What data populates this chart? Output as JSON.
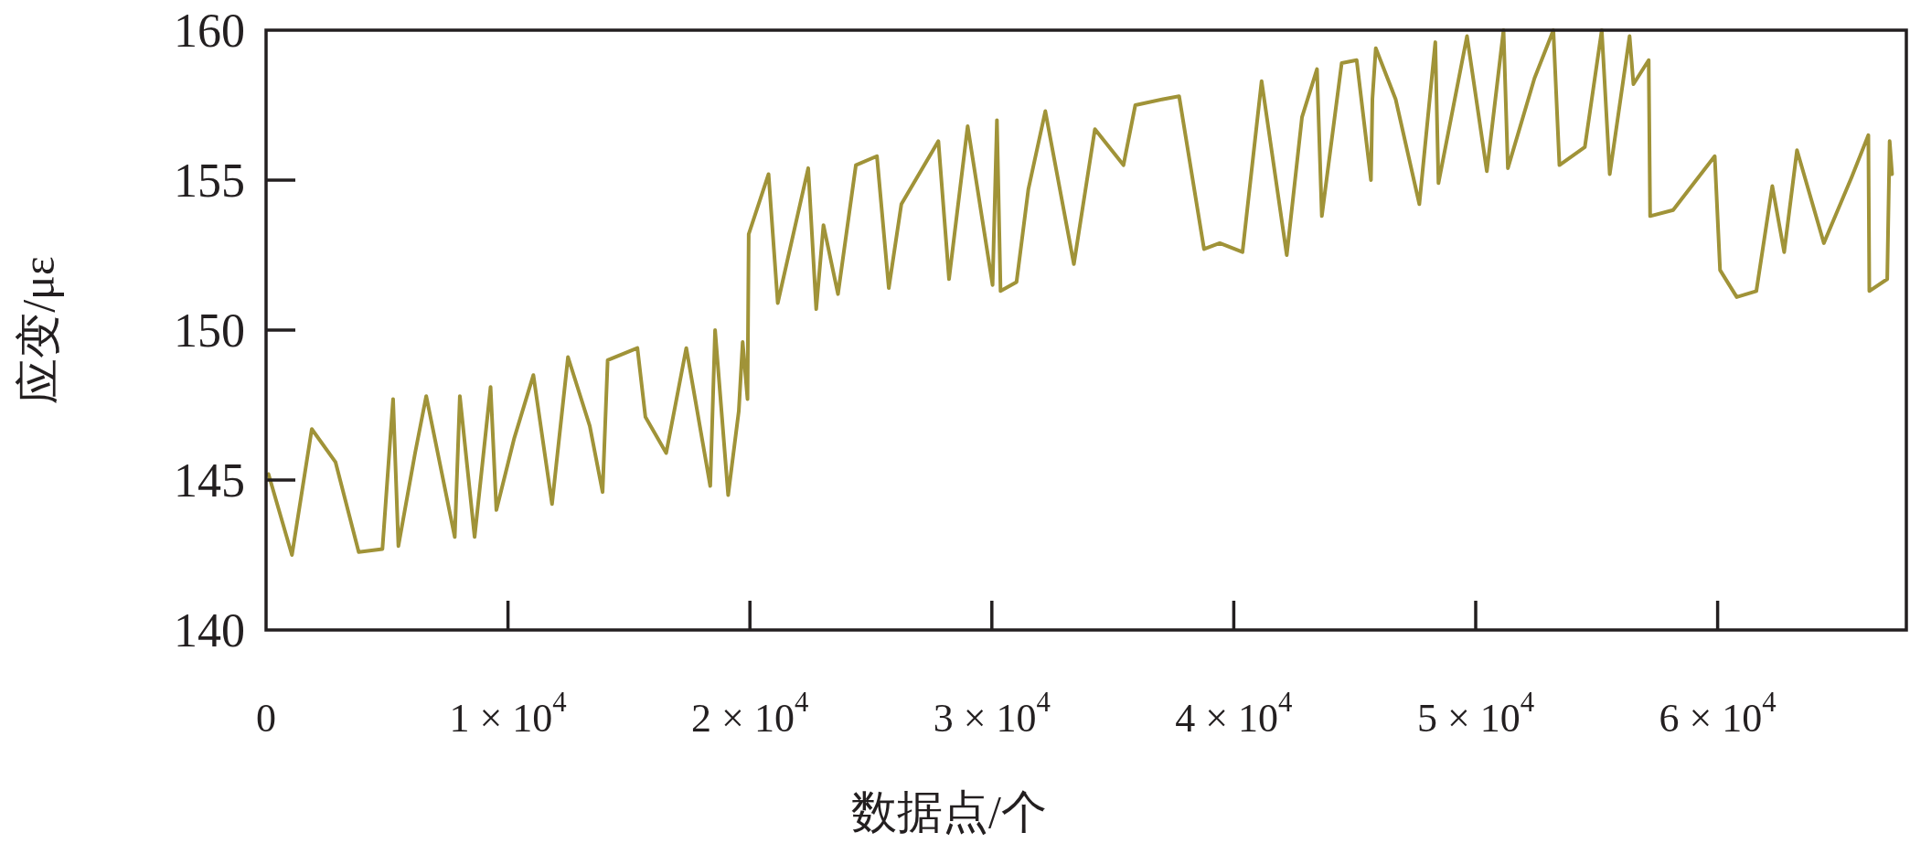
{
  "chart_data": {
    "type": "line",
    "xlabel": "数据点/个",
    "ylabel": "应变/με",
    "xlim": [
      0,
      67800
    ],
    "ylim": [
      140,
      160
    ],
    "xticks": [
      0,
      {
        "value": 10000,
        "label": "1 × 10$^{4}$"
      },
      {
        "value": 20000,
        "label": "2 × 10$^{4}$"
      },
      {
        "value": 30000,
        "label": "3 × 10$^{4}$"
      },
      {
        "value": 40000,
        "label": "4 × 10$^{4}$"
      },
      {
        "value": 50000,
        "label": "5 × 10$^{4}$"
      },
      {
        "value": 60000,
        "label": "6 × 10$^{4}$"
      }
    ],
    "yticks": [
      140,
      145,
      150,
      155,
      160
    ],
    "marker": "none",
    "line_style": "solid",
    "series": [
      {
        "color": "#a09338",
        "x": [
          100,
          1070,
          1890,
          2870,
          3830,
          4810,
          5250,
          5470,
          6160,
          6620,
          7800,
          8010,
          8620,
          9280,
          9520,
          10260,
          11050,
          11820,
          12480,
          13380,
          13910,
          14120,
          15350,
          15680,
          16540,
          17370,
          18360,
          18560,
          19100,
          19540,
          19700,
          19900,
          19950,
          20770,
          21150,
          22410,
          22740,
          23040,
          23640,
          24380,
          25250,
          25740,
          26260,
          27790,
          28230,
          29000,
          30030,
          30210,
          30360,
          31020,
          31510,
          32210,
          33390,
          34260,
          35440,
          35930,
          37080,
          37740,
          38770,
          39420,
          40360,
          41150,
          42190,
          42820,
          43440,
          43640,
          44460,
          45080,
          45670,
          45730,
          45870,
          46690,
          47670,
          48330,
          48460,
          49640,
          50460,
          51150,
          51330,
          52430,
          53210,
          53460,
          54510,
          55210,
          55540,
          56360,
          56520,
          57150,
          57210,
          58160,
          59880,
          60100,
          60790,
          61600,
          62260,
          62750,
          63280,
          64390,
          65540,
          66230,
          66270,
          67010,
          67110,
          67210
        ],
        "values": [
          145.2,
          142.5,
          146.7,
          145.6,
          142.6,
          142.7,
          147.7,
          142.8,
          145.9,
          147.8,
          143.1,
          147.8,
          143.1,
          148.1,
          144.0,
          146.4,
          148.5,
          144.2,
          149.1,
          146.8,
          144.6,
          149.0,
          149.4,
          147.1,
          145.9,
          149.4,
          144.8,
          150.0,
          144.5,
          147.3,
          149.6,
          147.7,
          153.2,
          155.2,
          150.9,
          155.4,
          150.7,
          153.5,
          151.2,
          155.5,
          155.8,
          151.4,
          154.2,
          156.3,
          151.7,
          156.8,
          151.5,
          157.0,
          151.3,
          151.6,
          154.7,
          157.3,
          152.2,
          156.7,
          155.5,
          157.5,
          157.7,
          157.8,
          152.7,
          152.9,
          152.6,
          158.3,
          152.5,
          157.1,
          158.7,
          153.8,
          158.9,
          159.0,
          155.0,
          157.7,
          159.4,
          157.7,
          154.2,
          159.6,
          154.9,
          159.8,
          155.3,
          160.0,
          155.4,
          158.4,
          160.0,
          155.5,
          156.1,
          160.0,
          155.2,
          159.8,
          158.2,
          159.0,
          153.8,
          154.0,
          155.8,
          152.0,
          151.1,
          151.3,
          154.8,
          152.6,
          156.0,
          152.9,
          155.1,
          156.5,
          151.3,
          151.7,
          156.3,
          155.2
        ]
      }
    ]
  }
}
